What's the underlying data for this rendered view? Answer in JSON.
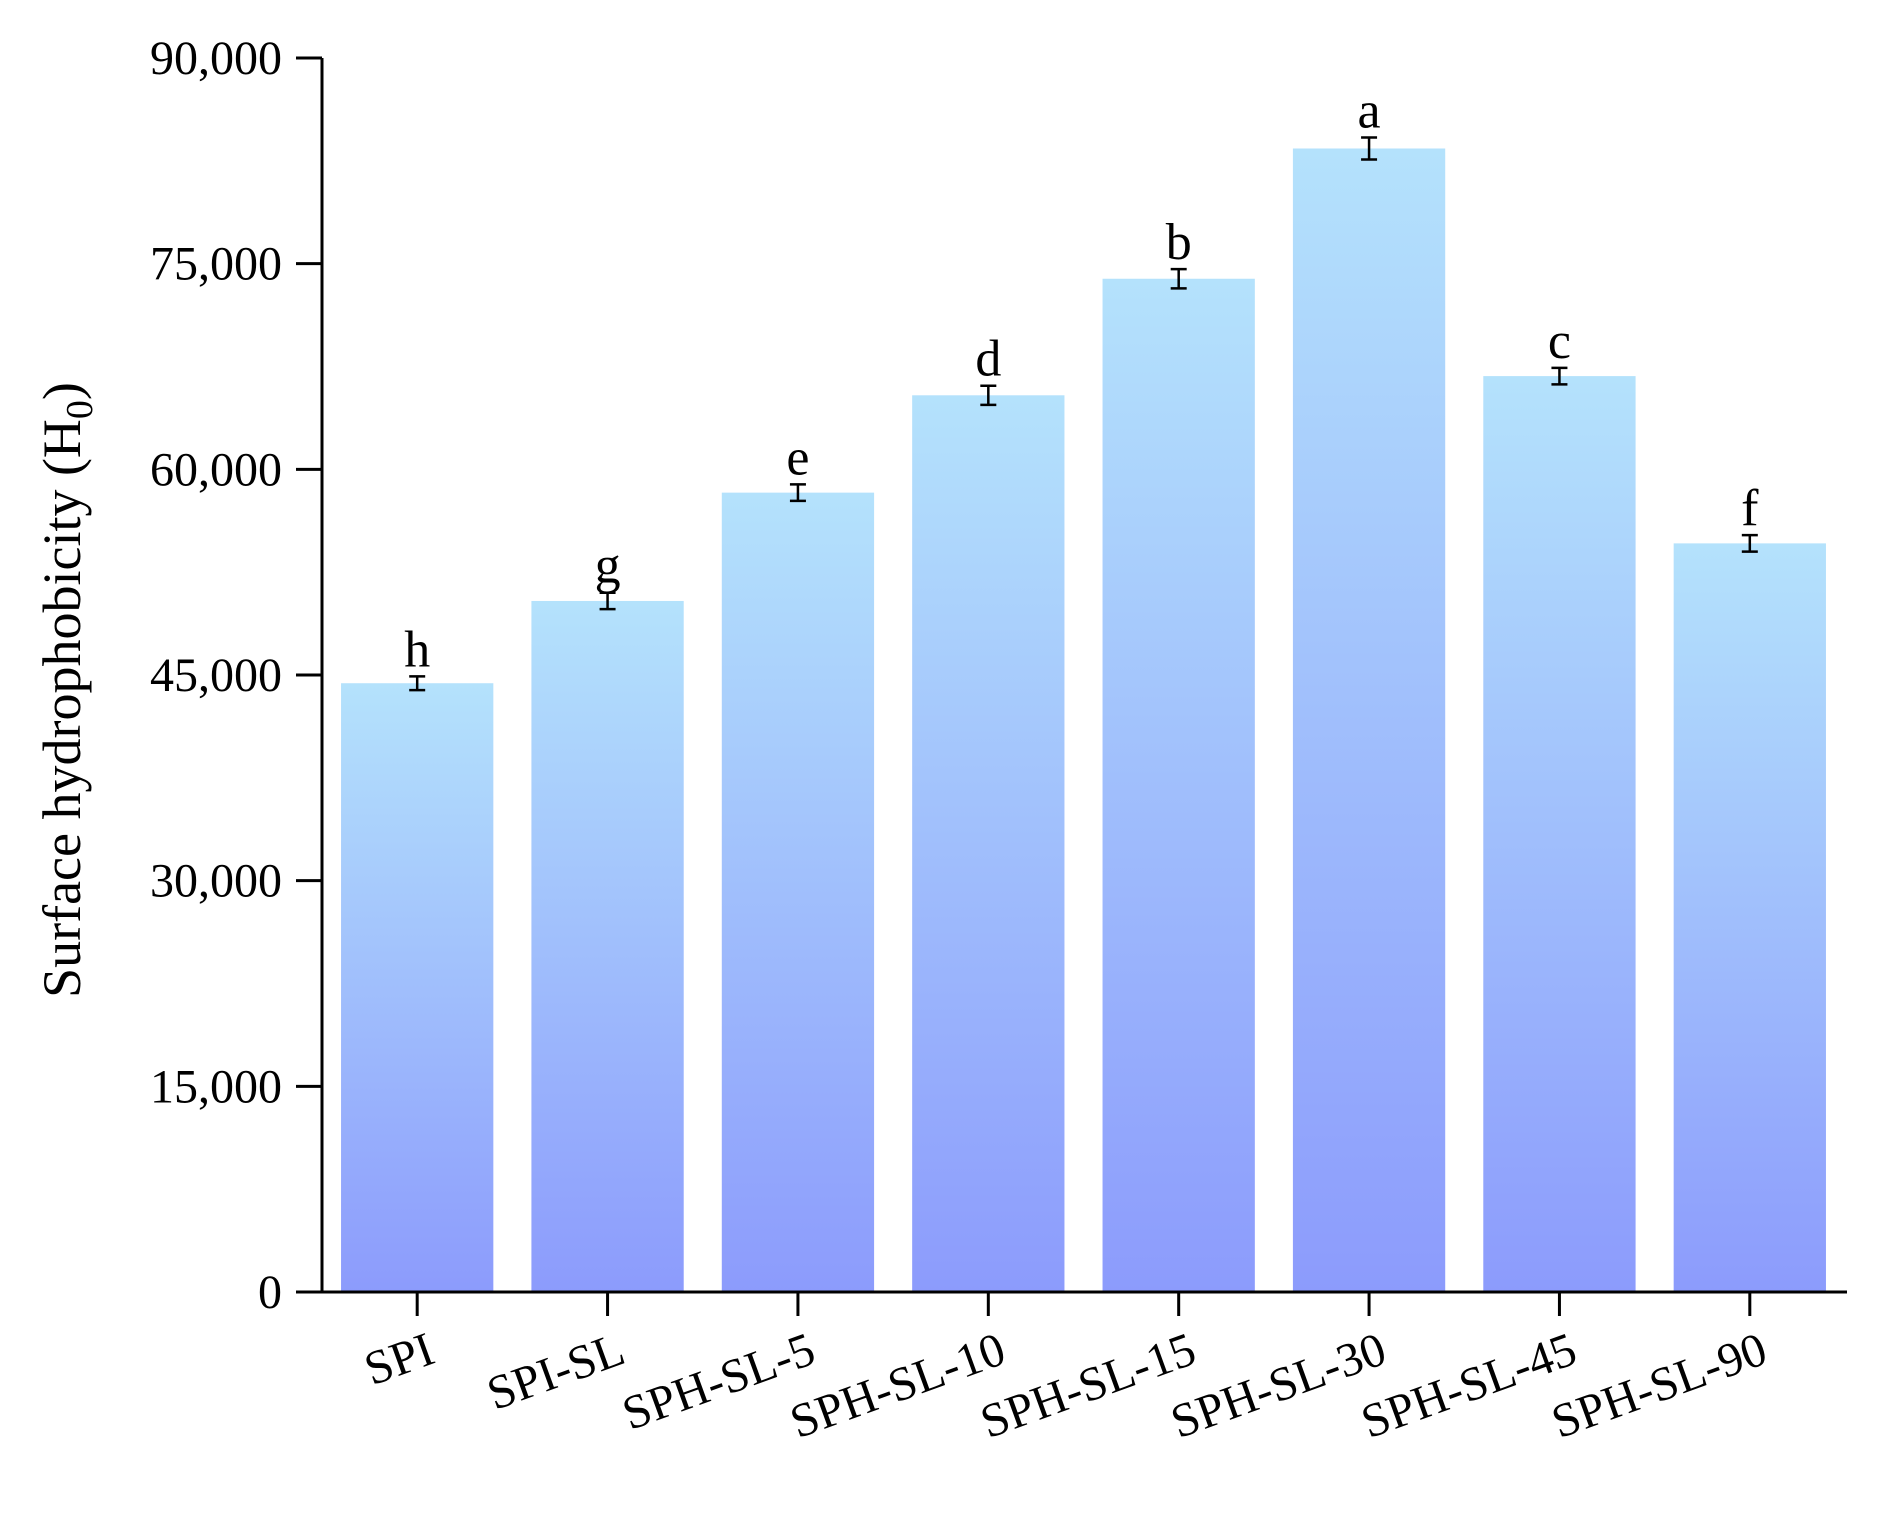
{
  "chart_data": {
    "type": "bar",
    "title": "",
    "xlabel": "",
    "ylabel": "Surface hydrophobicity (H",
    "ylabel_subscript": "0",
    "ylabel_suffix": ")",
    "ylim": [
      0,
      90000
    ],
    "yticks": [
      0,
      15000,
      30000,
      45000,
      60000,
      75000,
      90000
    ],
    "ytick_labels": [
      "0",
      "15,000",
      "30,000",
      "45,000",
      "60,000",
      "75,000",
      "90,000"
    ],
    "categories": [
      "SPI",
      "SPI-SL",
      "SPH-SL-5",
      "SPH-SL-10",
      "SPH-SL-15",
      "SPH-SL-30",
      "SPH-SL-45",
      "SPH-SL-90"
    ],
    "values": [
      44400,
      50400,
      58300,
      65400,
      73900,
      83400,
      66800,
      54600
    ],
    "errors": [
      500,
      600,
      600,
      700,
      700,
      800,
      600,
      600
    ],
    "significance_letters": [
      "h",
      "g",
      "e",
      "d",
      "b",
      "a",
      "c",
      "f"
    ],
    "grid": false,
    "legend": "none",
    "bar_gradient": {
      "top": "#b4e2fc",
      "bottom": "#8c9bfc"
    }
  }
}
